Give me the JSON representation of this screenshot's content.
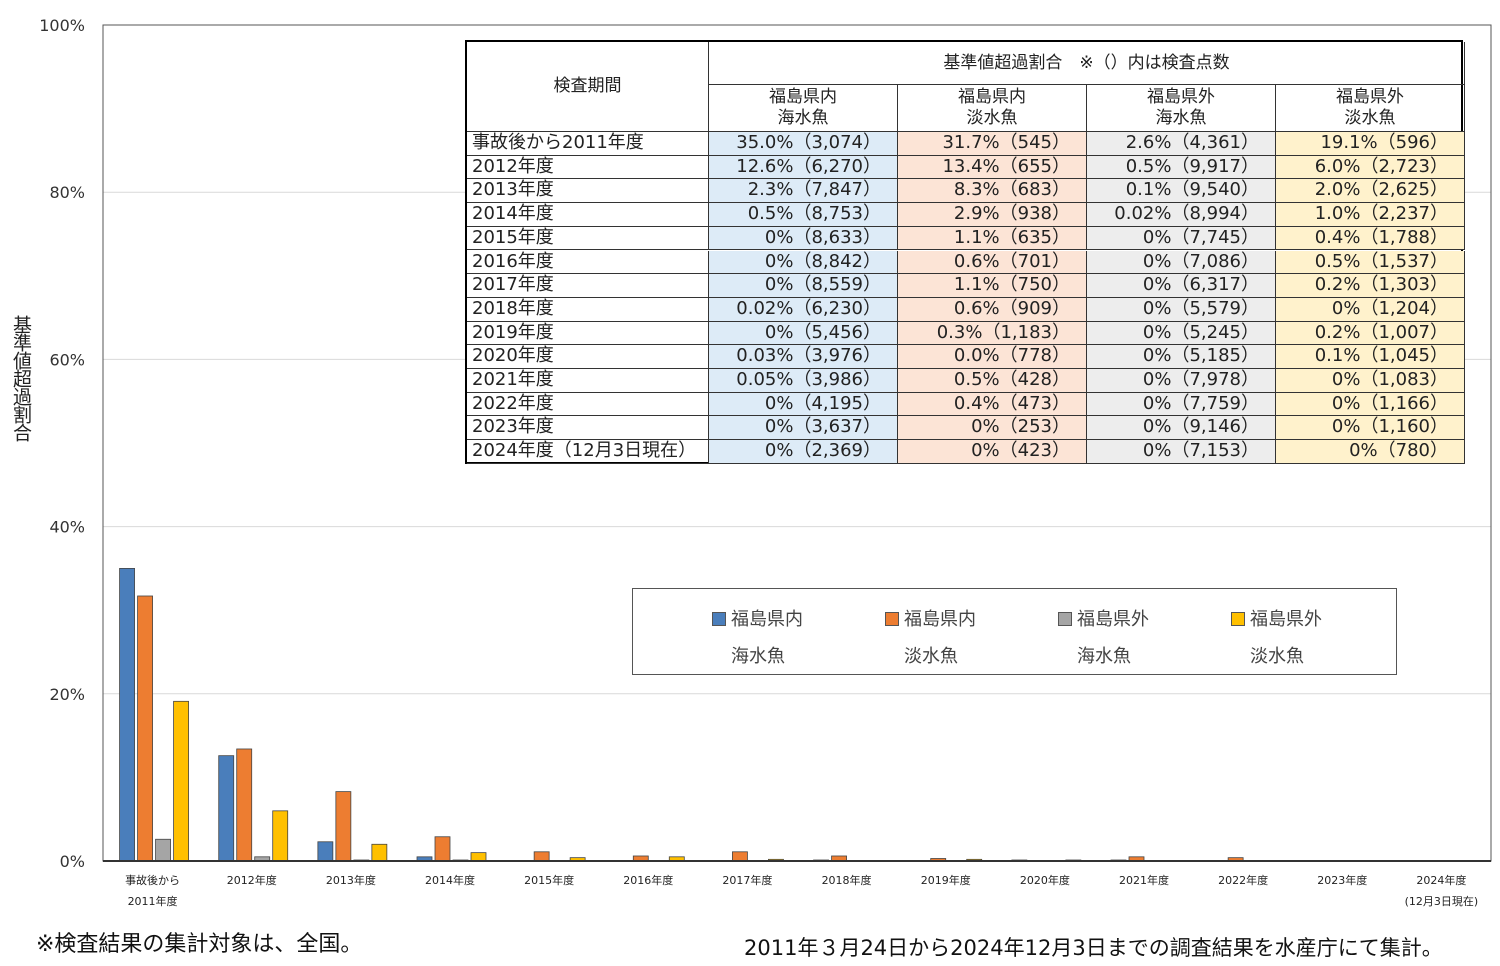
{
  "chart_data": {
    "type": "bar",
    "ylabel": "基準値超過割合",
    "ylim": [
      0,
      100
    ],
    "yticks": [
      "0%",
      "20%",
      "40%",
      "60%",
      "80%",
      "100%"
    ],
    "grid": true,
    "legend_placement": "center-right",
    "categories": [
      [
        "事故後から",
        "2011年度"
      ],
      [
        "2012年度"
      ],
      [
        "2013年度"
      ],
      [
        "2014年度"
      ],
      [
        "2015年度"
      ],
      [
        "2016年度"
      ],
      [
        "2017年度"
      ],
      [
        "2018年度"
      ],
      [
        "2019年度"
      ],
      [
        "2020年度"
      ],
      [
        "2021年度"
      ],
      [
        "2022年度"
      ],
      [
        "2023年度"
      ],
      [
        "2024年度",
        "(12月3日現在)"
      ]
    ],
    "series": [
      {
        "name": [
          "福島県内",
          "海水魚"
        ],
        "color": "#4a7ebb",
        "values": [
          35.0,
          12.6,
          2.3,
          0.5,
          0,
          0,
          0,
          0.02,
          0,
          0.03,
          0.05,
          0,
          0,
          0
        ]
      },
      {
        "name": [
          "福島県内",
          "淡水魚"
        ],
        "color": "#ed7d31",
        "values": [
          31.7,
          13.4,
          8.3,
          2.9,
          1.1,
          0.6,
          1.1,
          0.6,
          0.3,
          0.0,
          0.5,
          0.4,
          0,
          0
        ]
      },
      {
        "name": [
          "福島県外",
          "海水魚"
        ],
        "color": "#a5a5a5",
        "values": [
          2.6,
          0.5,
          0.1,
          0.02,
          0,
          0,
          0,
          0,
          0,
          0,
          0,
          0,
          0,
          0
        ]
      },
      {
        "name": [
          "福島県外",
          "淡水魚"
        ],
        "color": "#ffc000",
        "values": [
          19.1,
          6.0,
          2.0,
          1.0,
          0.4,
          0.5,
          0.2,
          0,
          0.2,
          0.1,
          0,
          0,
          0,
          0
        ]
      }
    ]
  },
  "table": {
    "period_header": "検査期間",
    "group_header": "基準値超過割合　※（）内は検査点数",
    "col_headers": [
      [
        "福島県内",
        "海水魚"
      ],
      [
        "福島県内",
        "淡水魚"
      ],
      [
        "福島県外",
        "海水魚"
      ],
      [
        "福島県外",
        "淡水魚"
      ]
    ],
    "col_colors": [
      "#ddebf7",
      "#fce4d6",
      "#ededed",
      "#fff2cc"
    ],
    "rows": [
      [
        "事故後から2011年度",
        "35.0%（3,074）",
        "31.7%（545）",
        "2.6%（4,361）",
        "19.1%（596）"
      ],
      [
        "2012年度",
        "12.6%（6,270）",
        "13.4%（655）",
        "0.5%（9,917）",
        "6.0%（2,723）"
      ],
      [
        "2013年度",
        "2.3%（7,847）",
        "8.3%（683）",
        "0.1%（9,540）",
        "2.0%（2,625）"
      ],
      [
        "2014年度",
        "0.5%（8,753）",
        "2.9%（938）",
        "0.02%（8,994）",
        "1.0%（2,237）"
      ],
      [
        "2015年度",
        "0%（8,633）",
        "1.1%（635）",
        "0%（7,745）",
        "0.4%（1,788）"
      ],
      [
        "2016年度",
        "0%（8,842）",
        "0.6%（701）",
        "0%（7,086）",
        "0.5%（1,537）"
      ],
      [
        "2017年度",
        "0%（8,559）",
        "1.1%（750）",
        "0%（6,317）",
        "0.2%（1,303）"
      ],
      [
        "2018年度",
        "0.02%（6,230）",
        "0.6%（909）",
        "0%（5,579）",
        "0%（1,204）"
      ],
      [
        "2019年度",
        "0%（5,456）",
        "0.3%（1,183）",
        "0%（5,245）",
        "0.2%（1,007）"
      ],
      [
        "2020年度",
        "0.03%（3,976）",
        "0.0%（778）",
        "0%（5,185）",
        "0.1%（1,045）"
      ],
      [
        "2021年度",
        "0.05%（3,986）",
        "0.5%（428）",
        "0%（7,978）",
        "0%（1,083）"
      ],
      [
        "2022年度",
        "0%（4,195）",
        "0.4%（473）",
        "0%（7,759）",
        "0%（1,166）"
      ],
      [
        "2023年度",
        "0%（3,637）",
        "0%（253）",
        "0%（9,146）",
        "0%（1,160）"
      ],
      [
        "2024年度（12月3日現在）",
        "0%（2,369）",
        "0%（423）",
        "0%（7,153）",
        "0%（780）"
      ]
    ]
  },
  "notes": {
    "left": "※検査結果の集計対象は、全国。",
    "right": "2011年３月24日から2024年12月3日までの調査結果を水産庁にて集計。"
  }
}
